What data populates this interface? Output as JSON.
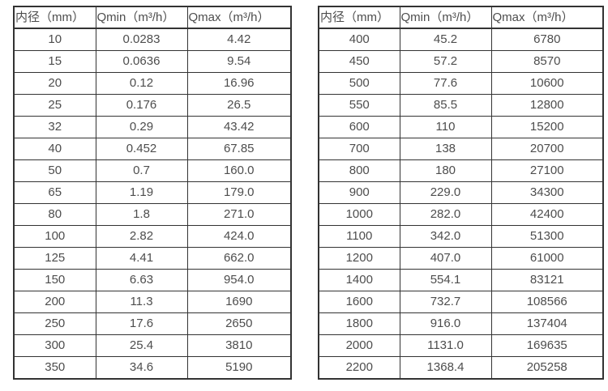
{
  "page": {
    "background_color": "#ffffff",
    "text_color": "#4d4d4d",
    "border_color": "#333333"
  },
  "tables": [
    {
      "name": "diameter-flow-table-left",
      "headers": [
        "内径（mm）",
        "Qmin（m³/h）",
        "Qmax（m³/h）"
      ],
      "rows": [
        [
          "10",
          "0.0283",
          "4.42"
        ],
        [
          "15",
          "0.0636",
          "9.54"
        ],
        [
          "20",
          "0.12",
          "16.96"
        ],
        [
          "25",
          "0.176",
          "26.5"
        ],
        [
          "32",
          "0.29",
          "43.42"
        ],
        [
          "40",
          "0.452",
          "67.85"
        ],
        [
          "50",
          "0.7",
          "160.0"
        ],
        [
          "65",
          "1.19",
          "179.0"
        ],
        [
          "80",
          "1.8",
          "271.0"
        ],
        [
          "100",
          "2.82",
          "424.0"
        ],
        [
          "125",
          "4.41",
          "662.0"
        ],
        [
          "150",
          "6.63",
          "954.0"
        ],
        [
          "200",
          "11.3",
          "1690"
        ],
        [
          "250",
          "17.6",
          "2650"
        ],
        [
          "300",
          "25.4",
          "3810"
        ],
        [
          "350",
          "34.6",
          "5190"
        ]
      ]
    },
    {
      "name": "diameter-flow-table-right",
      "headers": [
        "内径（mm）",
        "Qmin（m³/h）",
        "Qmax（m³/h）"
      ],
      "rows": [
        [
          "400",
          "45.2",
          "6780"
        ],
        [
          "450",
          "57.2",
          "8570"
        ],
        [
          "500",
          "77.6",
          "10600"
        ],
        [
          "550",
          "85.5",
          "12800"
        ],
        [
          "600",
          "110",
          "15200"
        ],
        [
          "700",
          "138",
          "20700"
        ],
        [
          "800",
          "180",
          "27100"
        ],
        [
          "900",
          "229.0",
          "34300"
        ],
        [
          "1000",
          "282.0",
          "42400"
        ],
        [
          "1100",
          "342.0",
          "51300"
        ],
        [
          "1200",
          "407.0",
          "61000"
        ],
        [
          "1400",
          "554.1",
          "83121"
        ],
        [
          "1600",
          "732.7",
          "108566"
        ],
        [
          "1800",
          "916.0",
          "137404"
        ],
        [
          "2000",
          "1131.0",
          "169635"
        ],
        [
          "2200",
          "1368.4",
          "205258"
        ]
      ]
    }
  ]
}
